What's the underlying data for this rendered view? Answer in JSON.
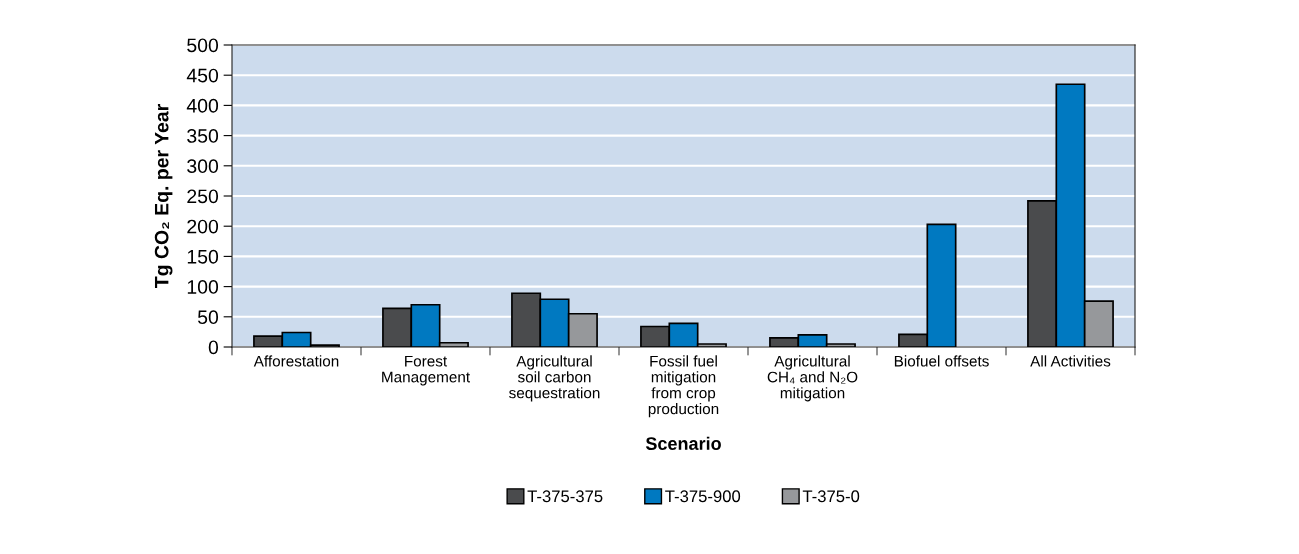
{
  "chart_data": {
    "type": "bar",
    "xlabel": "Scenario",
    "ylabel": "Tg CO₂ Eq. per Year",
    "categories": [
      "Afforestation",
      "Forest\nManagement",
      "Agricultural\nsoil carbon\nsequestration",
      "Fossil fuel\nmitigation\nfrom crop\nproduction",
      "Agricultural\nCH₄ and N₂O\nmitigation",
      "Biofuel offsets",
      "All Activities"
    ],
    "series": [
      {
        "name": "T-375-375",
        "color": "#4a4b4d",
        "values": [
          18,
          64,
          89,
          34,
          15,
          21,
          242
        ]
      },
      {
        "name": "T-375-900",
        "color": "#0079c1",
        "values": [
          24,
          70,
          79,
          39,
          20,
          203,
          435
        ]
      },
      {
        "name": "T-375-0",
        "color": "#96989b",
        "values": [
          3,
          7,
          55,
          5,
          5,
          null,
          76
        ]
      }
    ],
    "ylim": [
      0,
      500
    ],
    "yticks": [
      0,
      50,
      100,
      150,
      200,
      250,
      300,
      350,
      400,
      450,
      500
    ],
    "grid": "y",
    "legend": "bottom"
  }
}
